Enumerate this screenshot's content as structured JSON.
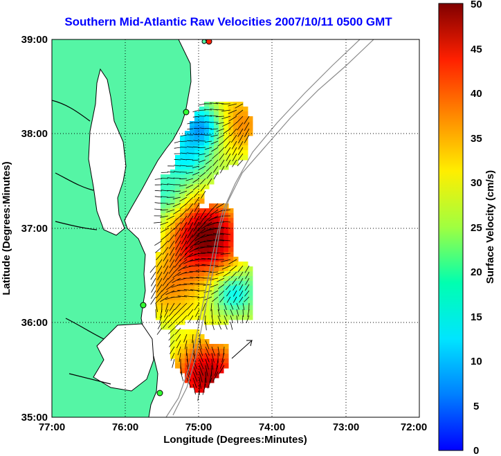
{
  "title": "Southern Mid-Atlantic Raw Velocities 2007/10/11 0500 GMT",
  "xlabel": "Longitude (Degrees:Minutes)",
  "ylabel": "Latitude (Degrees:Minutes)",
  "colorbar_label": "Surface Velocity (cm/s)",
  "x_ticks": [
    "77:00",
    "76:00",
    "75:00",
    "74:00",
    "73:00",
    "72:00"
  ],
  "y_ticks": [
    "39:00",
    "38:00",
    "37:00",
    "36:00",
    "35:00"
  ],
  "colorbar_ticks": [
    "50",
    "45",
    "40",
    "35",
    "30",
    "25",
    "20",
    "15",
    "10",
    "5",
    "0"
  ],
  "colors": {
    "land": "#55f5a5",
    "title": "#0000ff",
    "coastline": "#000000",
    "bathymetry": "#8a8a8a"
  },
  "map": {
    "lon_range": [
      -77,
      -72
    ],
    "lat_range": [
      35,
      39
    ],
    "grid": true,
    "colorbar_range": [
      0,
      50
    ],
    "colormap": "jet"
  }
}
